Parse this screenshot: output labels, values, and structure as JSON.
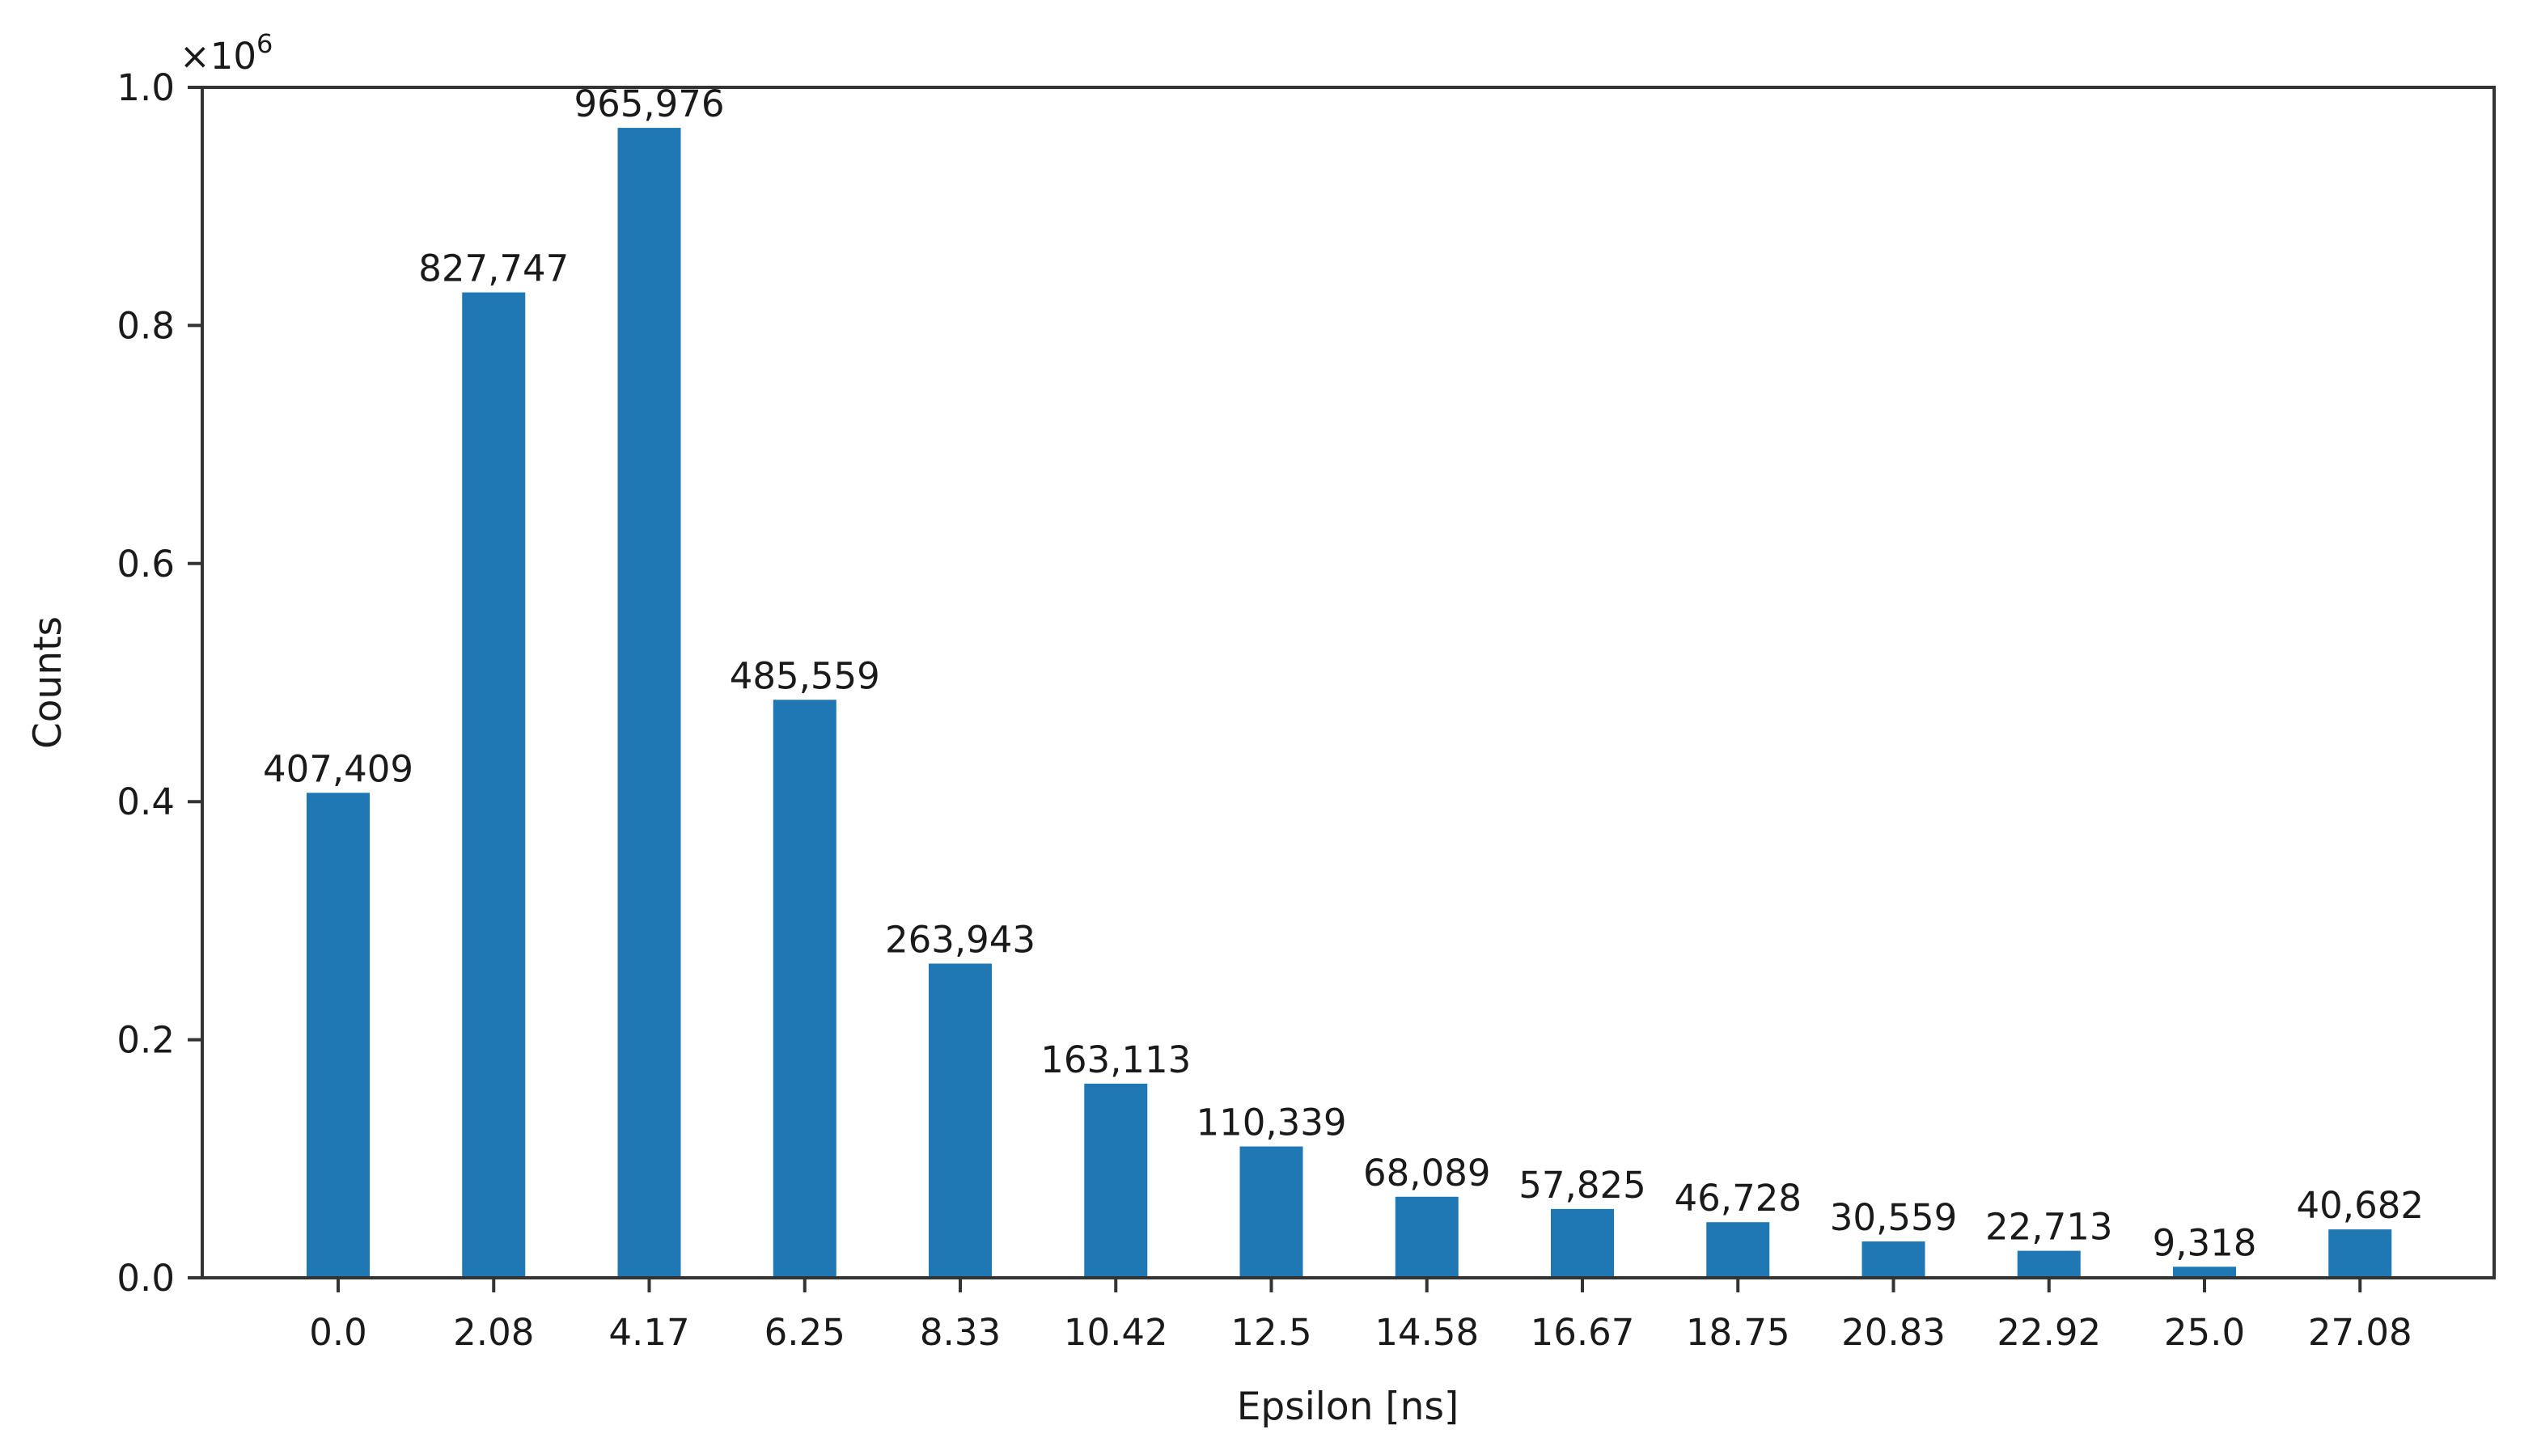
{
  "figure": {
    "background": "#ffffff",
    "bar_color": "#1f77b4",
    "axis_color": "#333333",
    "text_color": "#1a1a1a"
  },
  "chart_data": {
    "type": "bar",
    "title": "",
    "xlabel": "Epsilon [ns]",
    "ylabel": "Counts",
    "categories": [
      "0.0",
      "2.08",
      "4.17",
      "6.25",
      "8.33",
      "10.42",
      "12.5",
      "14.58",
      "16.67",
      "18.75",
      "20.83",
      "22.92",
      "25.0",
      "27.08"
    ],
    "values": [
      407409,
      827747,
      965976,
      485559,
      263943,
      163113,
      110339,
      68089,
      57825,
      46728,
      30559,
      22713,
      9318,
      40682
    ],
    "value_labels": [
      "407,409",
      "827,747",
      "965,976",
      "485,559",
      "263,943",
      "163,113",
      "110,339",
      "68,089",
      "57,825",
      "46,728",
      "30,559",
      "22,713",
      "9,318",
      "40,682"
    ],
    "ylim": [
      0,
      1000000
    ],
    "ytick_labels": [
      "0.0",
      "0.2",
      "0.4",
      "0.6",
      "0.8",
      "1.0"
    ],
    "ytick_values": [
      0,
      200000,
      400000,
      600000,
      800000,
      1000000
    ],
    "y_offset_text": {
      "base": "×10",
      "exp": "6"
    },
    "grid": false,
    "legend": null,
    "bar_color": "#1f77b4"
  }
}
